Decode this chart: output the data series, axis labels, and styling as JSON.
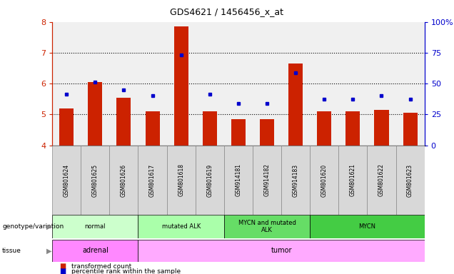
{
  "title": "GDS4621 / 1456456_x_at",
  "samples": [
    "GSM801624",
    "GSM801625",
    "GSM801626",
    "GSM801617",
    "GSM801618",
    "GSM801619",
    "GSM914181",
    "GSM914182",
    "GSM914183",
    "GSM801620",
    "GSM801621",
    "GSM801622",
    "GSM801623"
  ],
  "red_values": [
    5.2,
    6.05,
    5.55,
    5.1,
    7.85,
    5.1,
    4.85,
    4.85,
    6.65,
    5.1,
    5.1,
    5.15,
    5.05
  ],
  "blue_values": [
    5.65,
    6.05,
    5.8,
    5.6,
    6.92,
    5.65,
    5.35,
    5.35,
    6.35,
    5.5,
    5.5,
    5.6,
    5.5
  ],
  "ymin": 4.0,
  "ymax": 8.0,
  "yticks_left": [
    4,
    5,
    6,
    7,
    8
  ],
  "yticks_right": [
    0,
    25,
    50,
    75,
    100
  ],
  "ytick_right_labels": [
    "0",
    "25",
    "50",
    "75",
    "100%"
  ],
  "bar_color": "#cc2200",
  "dot_color": "#0000cc",
  "bg_color": "#ffffff",
  "plot_bg_color": "#f0f0f0",
  "genotype_groups": [
    {
      "label": "normal",
      "start": 0,
      "end": 3,
      "color": "#ccffcc"
    },
    {
      "label": "mutated ALK",
      "start": 3,
      "end": 6,
      "color": "#aaffaa"
    },
    {
      "label": "MYCN and mutated\nALK",
      "start": 6,
      "end": 9,
      "color": "#66dd66"
    },
    {
      "label": "MYCN",
      "start": 9,
      "end": 13,
      "color": "#44cc44"
    }
  ],
  "tissue_groups": [
    {
      "label": "adrenal",
      "start": 0,
      "end": 3,
      "color": "#ff88ff"
    },
    {
      "label": "tumor",
      "start": 3,
      "end": 13,
      "color": "#ffaaff"
    }
  ],
  "legend_items": [
    {
      "label": "transformed count",
      "color": "#cc2200"
    },
    {
      "label": "percentile rank within the sample",
      "color": "#0000cc"
    }
  ],
  "grid_yticks": [
    5,
    6,
    7
  ],
  "left_label_color": "#cc2200",
  "right_label_color": "#0000cc"
}
